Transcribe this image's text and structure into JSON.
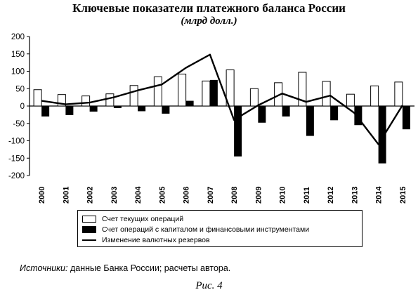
{
  "chart_data": {
    "type": "bar",
    "title": "Ключевые показатели платежного баланса России",
    "subtitle": "(млрд долл.)",
    "categories": [
      "2000",
      "2001",
      "2002",
      "2003",
      "2004",
      "2005",
      "2006",
      "2007",
      "2008",
      "2009",
      "2010",
      "2011",
      "2012",
      "2013",
      "2014",
      "2015"
    ],
    "ylim": [
      -200,
      200
    ],
    "yticks": [
      -200,
      -150,
      -100,
      -50,
      0,
      50,
      100,
      150,
      200
    ],
    "grid": false,
    "legend_position": "bottom",
    "series": [
      {
        "name": "Счет текущих операций",
        "kind": "bar",
        "style": "outline",
        "values": [
          47,
          33,
          29,
          35,
          59,
          84,
          92,
          72,
          104,
          50,
          67,
          97,
          71,
          34,
          58,
          69
        ]
      },
      {
        "name": "Счет операций с капиталом и  финансовыми  инструментами",
        "kind": "bar",
        "style": "filled",
        "values": [
          -30,
          -26,
          -16,
          -6,
          -15,
          -22,
          15,
          75,
          -145,
          -48,
          -30,
          -86,
          -41,
          -55,
          -165,
          -67
        ]
      },
      {
        "name": "Изменение валютных резервов",
        "kind": "line",
        "values": [
          15,
          5,
          10,
          25,
          45,
          62,
          110,
          148,
          -40,
          2,
          36,
          12,
          30,
          -20,
          -110,
          2
        ]
      }
    ]
  },
  "footer": {
    "source_label": "Источники:",
    "source_text": " данные Банка России; расчеты автора.",
    "figure_caption": "Рис. 4"
  }
}
